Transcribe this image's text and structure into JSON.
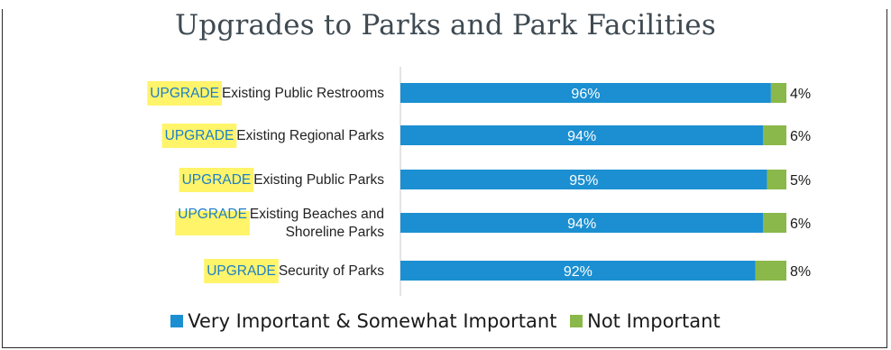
{
  "header": {
    "title": "Upgrades to Parks and Park Facilities"
  },
  "colors": {
    "important": "#1b8fd1",
    "not_important": "#8bb84a",
    "highlight": "#fff46a",
    "tag_text": "#1d7fc6",
    "label_text": "#222222",
    "value_text": "#ffffff"
  },
  "chart_data": {
    "type": "bar",
    "orientation": "horizontal",
    "stacked": true,
    "title": "Upgrades to Parks and Park Facilities",
    "category_tags": [
      "UPGRADE",
      "UPGRADE",
      "UPGRADE",
      "UPGRADE",
      "UPGRADE"
    ],
    "categories": [
      [
        "Existing Public Restrooms"
      ],
      [
        "Existing Regional Parks"
      ],
      [
        "Existing Public Parks"
      ],
      [
        "Existing Beaches and",
        "Shoreline Parks"
      ],
      [
        "Security of Parks"
      ]
    ],
    "series": [
      {
        "name": "Very Important & Somewhat Important",
        "values": [
          96,
          94,
          95,
          94,
          92
        ],
        "labels": [
          "96%",
          "94%",
          "95%",
          "94%",
          "92%"
        ]
      },
      {
        "name": "Not Important",
        "values": [
          4,
          6,
          5,
          6,
          8
        ],
        "labels": [
          "4%",
          "6%",
          "5%",
          "6%",
          "8%"
        ]
      }
    ],
    "xlim": [
      0,
      100
    ],
    "grid": false,
    "legend_position": "bottom"
  },
  "legend": {
    "items": [
      {
        "label": "Very Important & Somewhat Important"
      },
      {
        "label": "Not Important"
      }
    ]
  }
}
